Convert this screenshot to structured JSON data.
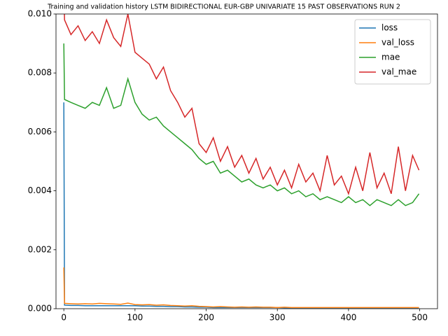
{
  "chart_data": {
    "type": "line",
    "title": "Training and validation history LSTM BIDIRECTIONAL EUR-GBP UNIVARIATE 15 PAST OBSERVATIONS RUN 2",
    "x": [
      0,
      1,
      10,
      20,
      30,
      40,
      50,
      60,
      70,
      80,
      90,
      100,
      110,
      120,
      130,
      140,
      150,
      160,
      170,
      180,
      190,
      200,
      210,
      220,
      230,
      240,
      250,
      260,
      270,
      280,
      290,
      300,
      310,
      320,
      330,
      340,
      350,
      360,
      370,
      380,
      390,
      400,
      410,
      420,
      430,
      440,
      450,
      460,
      470,
      480,
      490,
      499
    ],
    "series": [
      {
        "name": "loss",
        "color": "#1f77b4",
        "values": [
          0.007,
          0.00012,
          0.00011,
          0.00011,
          0.0001,
          0.0001,
          0.0001,
          0.0001,
          0.0001,
          0.0001,
          0.0001,
          0.0001,
          9e-05,
          9e-05,
          8e-05,
          8e-05,
          7e-05,
          7e-05,
          6e-05,
          6e-05,
          5e-05,
          5e-05,
          4e-05,
          4e-05,
          4e-05,
          4e-05,
          4e-05,
          4e-05,
          4e-05,
          4e-05,
          4e-05,
          4e-05,
          3e-05,
          3e-05,
          3e-05,
          3e-05,
          3e-05,
          3e-05,
          3e-05,
          3e-05,
          3e-05,
          3e-05,
          3e-05,
          3e-05,
          3e-05,
          3e-05,
          3e-05,
          3e-05,
          3e-05,
          3e-05,
          3e-05,
          3e-05
        ]
      },
      {
        "name": "val_loss",
        "color": "#ff7f0e",
        "values": [
          0.0014,
          0.00018,
          0.00017,
          0.00016,
          0.00017,
          0.00016,
          0.00018,
          0.00017,
          0.00016,
          0.00015,
          0.00019,
          0.00014,
          0.00013,
          0.00014,
          0.00012,
          0.00013,
          0.00011,
          0.0001,
          9e-05,
          0.0001,
          8e-05,
          7e-05,
          6e-05,
          7e-05,
          6e-05,
          5e-05,
          6e-05,
          5e-05,
          6e-05,
          5e-05,
          5e-05,
          4e-05,
          5e-05,
          4e-05,
          4e-05,
          4e-05,
          4e-05,
          4e-05,
          4e-05,
          4e-05,
          4e-05,
          4e-05,
          4e-05,
          4e-05,
          4e-05,
          4e-05,
          4e-05,
          4e-05,
          4e-05,
          4e-05,
          4e-05,
          4e-05
        ]
      },
      {
        "name": "mae",
        "color": "#2ca02c",
        "values": [
          0.009,
          0.0071,
          0.007,
          0.0069,
          0.0068,
          0.007,
          0.0069,
          0.0075,
          0.0068,
          0.0069,
          0.0078,
          0.007,
          0.0066,
          0.0064,
          0.0065,
          0.0062,
          0.006,
          0.0058,
          0.0056,
          0.0054,
          0.0051,
          0.0049,
          0.005,
          0.0046,
          0.0047,
          0.0045,
          0.0043,
          0.0044,
          0.0042,
          0.0041,
          0.0042,
          0.004,
          0.0041,
          0.0039,
          0.004,
          0.0038,
          0.0039,
          0.0037,
          0.0038,
          0.0037,
          0.0036,
          0.0038,
          0.0036,
          0.0037,
          0.0035,
          0.0037,
          0.0036,
          0.0035,
          0.0037,
          0.0035,
          0.0036,
          0.0039
        ]
      },
      {
        "name": "val_mae",
        "color": "#d62728",
        "values": [
          0.0108,
          0.0098,
          0.0093,
          0.0096,
          0.0091,
          0.0094,
          0.009,
          0.0098,
          0.0092,
          0.0089,
          0.01,
          0.0087,
          0.0085,
          0.0083,
          0.0078,
          0.0082,
          0.0074,
          0.007,
          0.0065,
          0.0068,
          0.0056,
          0.0053,
          0.0058,
          0.005,
          0.0055,
          0.0048,
          0.0052,
          0.0046,
          0.0051,
          0.0044,
          0.0048,
          0.0042,
          0.0047,
          0.0041,
          0.0049,
          0.0043,
          0.0046,
          0.004,
          0.0052,
          0.0042,
          0.0045,
          0.0039,
          0.0048,
          0.004,
          0.0053,
          0.0041,
          0.0046,
          0.0039,
          0.0055,
          0.004,
          0.0052,
          0.0047
        ]
      }
    ],
    "xlim": [
      -11,
      525
    ],
    "xticks": [
      0,
      100,
      200,
      300,
      400,
      500
    ],
    "ylim": [
      0,
      0.01
    ],
    "yticks": [
      {
        "value": 0,
        "label": "0.000"
      },
      {
        "value": 0.002,
        "label": "0.002"
      },
      {
        "value": 0.004,
        "label": "0.004"
      },
      {
        "value": 0.006,
        "label": "0.006"
      },
      {
        "value": 0.008,
        "label": "0.008"
      },
      {
        "value": 0.01,
        "label": "0.010"
      }
    ],
    "legend": "upper right"
  }
}
